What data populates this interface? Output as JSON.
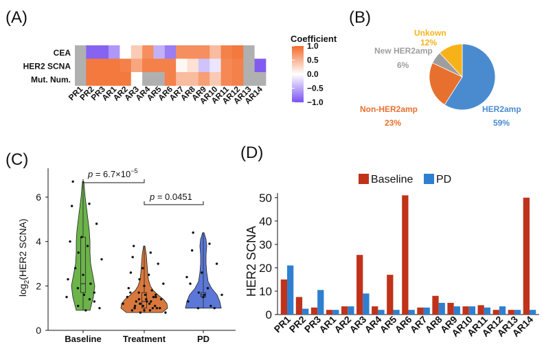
{
  "panel_labels": {
    "a": "(A)",
    "b": "(B)",
    "c": "(C)",
    "d": "(D)"
  },
  "colors": {
    "heat_pos": "#f26a2a",
    "heat_neg": "#7a52f0",
    "heat_na": "#b0b0b0",
    "green": "#6bb34a",
    "orange": "#d9783c",
    "blue": "#5b78d8",
    "pie_her2amp": "#4a8bd0",
    "pie_nonher2": "#e8702e",
    "pie_newher2": "#9e9e9e",
    "pie_unknown": "#f7b21a",
    "bar_baseline": "#c0321a",
    "bar_pd": "#2f7fd0"
  },
  "chart_data": [
    {
      "type": "heatmap",
      "panel": "A",
      "rows": [
        "CEA",
        "HER2 SCNA",
        "Mut. Num."
      ],
      "columns": [
        "PR1",
        "PR2",
        "PR3",
        "AR1",
        "AR2",
        "AR3",
        "AR4",
        "AR5",
        "AR6",
        "AR7",
        "AR8",
        "AR9",
        "AR10",
        "AR11",
        "AR12",
        "AR13",
        "AR14"
      ],
      "values": [
        [
          null,
          -0.9,
          -0.9,
          -0.6,
          0.0,
          0.35,
          0.75,
          -0.45,
          -0.75,
          0.75,
          0.75,
          0.75,
          0.45,
          0.85,
          0.9,
          null,
          0.0
        ],
        [
          null,
          0.9,
          0.9,
          0.9,
          0.85,
          0.6,
          0.85,
          0.85,
          0.85,
          0.05,
          0.2,
          -0.35,
          -0.15,
          0.8,
          0.85,
          null,
          -0.95
        ],
        [
          null,
          0.9,
          0.9,
          0.9,
          0.9,
          0.0,
          null,
          null,
          0.85,
          0.45,
          0.45,
          0.65,
          0.35,
          0.8,
          0.85,
          null,
          null
        ]
      ],
      "legend_title": "Coefficient",
      "scale_ticks": [
        "1.0",
        "0.5",
        "0.0",
        "−0.5",
        "−1.0"
      ],
      "range": [
        -1.0,
        1.0
      ]
    },
    {
      "type": "pie",
      "panel": "B",
      "slices": [
        {
          "name": "HER2amp",
          "pct_label": "59%",
          "value": 59
        },
        {
          "name": "Non-HER2amp",
          "pct_label": "23%",
          "value": 23
        },
        {
          "name": "New HER2amp",
          "pct_label": "6%",
          "value": 6
        },
        {
          "name": "Unkown",
          "pct_label": "12%",
          "value": 12
        }
      ]
    },
    {
      "type": "violin",
      "panel": "C",
      "categories": [
        "Baseline",
        "Treatment",
        "PD"
      ],
      "ylabel_prefix": "log",
      "ylabel_sub": "2",
      "ylabel_suffix": "(HER2 SCNA)",
      "yticks": [
        "0",
        "2",
        "4",
        "6"
      ],
      "ylim": [
        0,
        7.3
      ],
      "pvalue_1": {
        "prefix": "p",
        "text": " = 6.7×10",
        "exp": "−5"
      },
      "pvalue_2": {
        "prefix": "p",
        "text": " = 0.0451"
      },
      "points": {
        "Baseline": [
          6.7,
          5.7,
          5.6,
          4.8,
          4.2,
          4.0,
          3.8,
          3.5,
          3.2,
          2.5,
          2.3,
          2.1,
          1.9,
          1.7,
          1.6,
          1.5,
          1.3,
          1.1,
          1.0,
          0.9,
          2.8,
          1.4
        ],
        "Treatment": [
          3.8,
          3.5,
          3.3,
          3.0,
          2.8,
          2.6,
          2.5,
          2.3,
          2.1,
          2.0,
          1.9,
          1.8,
          1.7,
          1.6,
          1.6,
          1.5,
          1.5,
          1.4,
          1.4,
          1.3,
          1.3,
          1.3,
          1.2,
          1.2,
          1.2,
          1.1,
          1.1,
          1.1,
          1.0,
          1.0,
          1.0,
          1.0,
          0.9,
          0.9,
          0.9,
          0.8,
          0.8,
          1.4,
          1.7,
          1.5,
          1.2,
          1.0
        ],
        "PD": [
          4.4,
          3.9,
          3.6,
          3.0,
          2.6,
          2.1,
          1.9,
          1.7,
          1.6,
          1.5,
          1.3,
          1.1,
          1.0,
          1.0,
          1.6,
          2.4
        ]
      },
      "violins": {
        "Baseline": {
          "min": 0.9,
          "max": 6.7,
          "q1": 1.7,
          "median": 2.1,
          "q3": 4.2,
          "dens": [
            [
              0.9,
              10
            ],
            [
              1.5,
              15
            ],
            [
              2.0,
              17
            ],
            [
              2.5,
              14
            ],
            [
              3.0,
              11
            ],
            [
              3.5,
              10
            ],
            [
              4.0,
              10
            ],
            [
              4.5,
              9
            ],
            [
              5.0,
              7
            ],
            [
              5.5,
              5
            ],
            [
              6.0,
              3
            ],
            [
              6.7,
              1
            ]
          ]
        },
        "Treatment": {
          "min": 0.8,
          "max": 3.8,
          "q1": 1.0,
          "median": 1.3,
          "q3": 1.7,
          "dens": [
            [
              0.8,
              26
            ],
            [
              1.0,
              34
            ],
            [
              1.2,
              33
            ],
            [
              1.4,
              28
            ],
            [
              1.6,
              20
            ],
            [
              1.8,
              13
            ],
            [
              2.0,
              9
            ],
            [
              2.3,
              6
            ],
            [
              2.6,
              5
            ],
            [
              3.0,
              4
            ],
            [
              3.4,
              3
            ],
            [
              3.8,
              1
            ]
          ]
        },
        "PD": {
          "min": 1.0,
          "max": 4.4,
          "q1": 1.5,
          "median": 1.6,
          "q3": 1.7,
          "dens": [
            [
              1.0,
              26
            ],
            [
              1.3,
              24
            ],
            [
              1.6,
              20
            ],
            [
              1.9,
              12
            ],
            [
              2.2,
              7
            ],
            [
              2.6,
              5
            ],
            [
              3.0,
              4
            ],
            [
              3.4,
              4
            ],
            [
              3.8,
              5
            ],
            [
              4.1,
              4
            ],
            [
              4.4,
              1
            ]
          ]
        }
      }
    },
    {
      "type": "bar",
      "panel": "D",
      "categories": [
        "PR1",
        "PR2",
        "PR3",
        "AR1",
        "AR2",
        "AR3",
        "AR4",
        "AR5",
        "AR6",
        "AR7",
        "AR8",
        "AR9",
        "AR10",
        "AR11",
        "AR12",
        "AR13",
        "AR14"
      ],
      "series": [
        {
          "name": "Baseline",
          "values": [
            15,
            7.5,
            3,
            2,
            3.5,
            25.5,
            3.5,
            17,
            51,
            3,
            8,
            5,
            3.5,
            4,
            2,
            2,
            50
          ]
        },
        {
          "name": "PD",
          "values": [
            21,
            2.5,
            10.5,
            2,
            3.5,
            9,
            2,
            2,
            2,
            3,
            5,
            3.5,
            3.5,
            3,
            3.5,
            2,
            2
          ]
        }
      ],
      "ylabel": "HER2 SCNA",
      "ylim": [
        0,
        52
      ],
      "yticks": [
        "0",
        "10",
        "20",
        "30",
        "40",
        "50"
      ]
    }
  ]
}
